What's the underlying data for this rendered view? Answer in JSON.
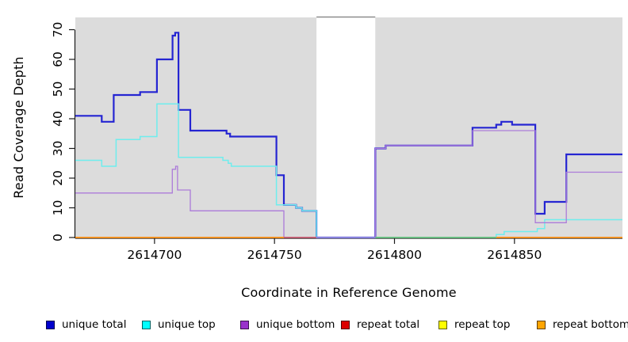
{
  "chart_data": {
    "type": "line",
    "subtype": "step-coverage",
    "title": "",
    "xlabel": "Coordinate in Reference Genome",
    "ylabel": "Read Coverage Depth",
    "xlim": [
      2614667,
      2614895
    ],
    "ylim": [
      0,
      74
    ],
    "grid": false,
    "legend_position": "bottom",
    "plot_bg": "#DCDCDC",
    "page_bg": "#FFFFFF",
    "x_ticks": [
      2614700,
      2614750,
      2614800,
      2614850
    ],
    "y_ticks": [
      0,
      10,
      20,
      30,
      40,
      50,
      60,
      70
    ],
    "masked_region": {
      "x_start": 2614767.5,
      "x_end": 2614792,
      "fill": "#FFFFFF",
      "border_top_color": "#8C8C8C"
    },
    "series": [
      {
        "name": "unique total",
        "legend_color": "#0000CD",
        "line_color": "#2525D2",
        "width": 2.2,
        "runs": [
          {
            "points": [
              [
                2614667,
                41
              ],
              [
                2614678,
                39
              ],
              [
                2614683,
                48
              ],
              [
                2614694,
                49
              ],
              [
                2614701,
                60
              ],
              [
                2614707.5,
                68
              ],
              [
                2614708.6,
                69
              ],
              [
                2614710,
                43
              ],
              [
                2614714.9,
                36
              ],
              [
                2614730,
                35
              ],
              [
                2614731.5,
                34
              ],
              [
                2614750.8,
                21
              ],
              [
                2614753.9,
                11
              ],
              [
                2614759,
                10
              ],
              [
                2614761.5,
                9
              ],
              [
                2614767.5,
                0
              ],
              [
                2614792,
                30
              ],
              [
                2614796.3,
                31
              ],
              [
                2614832.5,
                37
              ],
              [
                2614842.4,
                38
              ],
              [
                2614844.5,
                39
              ],
              [
                2614849,
                38
              ],
              [
                2614858.7,
                8
              ],
              [
                2614862.6,
                12
              ],
              [
                2614871.6,
                28
              ]
            ],
            "end": 2614895
          }
        ]
      },
      {
        "name": "unique top",
        "legend_color": "#00FFFF",
        "line_color": "#6FEDED",
        "width": 1.5,
        "runs": [
          {
            "points": [
              [
                2614667,
                26
              ],
              [
                2614678,
                24
              ],
              [
                2614684,
                33
              ],
              [
                2614694,
                34
              ],
              [
                2614701,
                45
              ],
              [
                2614710,
                27
              ],
              [
                2614728.5,
                26
              ],
              [
                2614730.7,
                25
              ],
              [
                2614732,
                24
              ],
              [
                2614750.8,
                11
              ],
              [
                2614759,
                10
              ],
              [
                2614761.5,
                9
              ],
              [
                2614767.5,
                0
              ],
              [
                2614842.4,
                1
              ],
              [
                2614845.7,
                2
              ],
              [
                2614859.5,
                3
              ],
              [
                2614862.6,
                6
              ]
            ],
            "end": 2614895
          }
        ]
      },
      {
        "name": "unique bottom",
        "legend_color": "#9932CC",
        "line_color": "#AC7BD9",
        "width": 1.3,
        "runs": [
          {
            "points": [
              [
                2614667,
                15
              ],
              [
                2614707.4,
                23
              ],
              [
                2614708.8,
                24
              ],
              [
                2614709.6,
                16
              ],
              [
                2614714.9,
                9
              ],
              [
                2614753.9,
                0
              ],
              [
                2614792,
                30
              ],
              [
                2614796.3,
                31
              ],
              [
                2614832.5,
                36
              ],
              [
                2614858.7,
                5
              ],
              [
                2614871.6,
                22
              ]
            ],
            "end": 2614895
          }
        ]
      },
      {
        "name": "repeat total",
        "legend_color": "#DD0000",
        "line_color": "#D05568",
        "width": 1.4,
        "runs": [
          {
            "points": [
              [
                2614753.9,
                0
              ]
            ],
            "end": 2614767.5
          }
        ]
      },
      {
        "name": "repeat top",
        "legend_color": "#FFFF00",
        "line_color": "#63BE6E",
        "width": 1.4,
        "runs": [
          {
            "points": [
              [
                2614792,
                0
              ]
            ],
            "end": 2614842.4
          }
        ]
      },
      {
        "name": "repeat bottom",
        "legend_color": "#FFA500",
        "line_color": "#FF9213",
        "width": 1.7,
        "runs": [
          {
            "points": [
              [
                2614667,
                0
              ]
            ],
            "end": 2614753.9
          },
          {
            "points": [
              [
                2614842.4,
                0
              ]
            ],
            "end": 2614895
          }
        ]
      }
    ]
  },
  "legend": {
    "items": [
      {
        "label": "unique total",
        "color": "#0000CD",
        "x": 58
      },
      {
        "label": "unique top",
        "color": "#00FFFF",
        "x": 179
      },
      {
        "label": "unique bottom",
        "color": "#9932CC",
        "x": 303
      },
      {
        "label": "repeat total",
        "color": "#DD0000",
        "x": 430
      },
      {
        "label": "repeat top",
        "color": "#FFFF00",
        "x": 553
      },
      {
        "label": "repeat bottom",
        "color": "#FFA500",
        "x": 677
      }
    ]
  }
}
